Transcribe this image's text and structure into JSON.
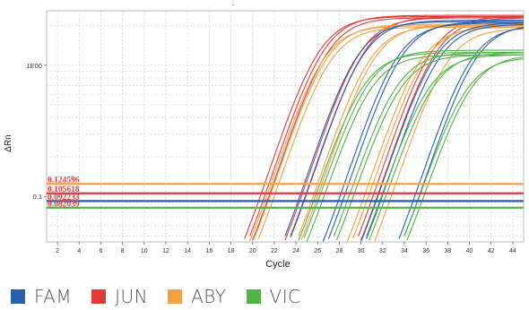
{
  "chart_data": {
    "type": "line",
    "title": "-",
    "xlabel": "Cycle",
    "ylabel": "ΔRn",
    "xlim": [
      1,
      45
    ],
    "ylim": [
      0.045,
      2.6
    ],
    "yscale": "log",
    "x_ticks": [
      "2",
      "4",
      "6",
      "8",
      "10",
      "12",
      "14",
      "16",
      "18",
      "20",
      "22",
      "24",
      "26",
      "28",
      "30",
      "32",
      "34",
      "36",
      "38",
      "40",
      "42",
      "44"
    ],
    "y_ticks": [
      {
        "value": 0.1,
        "label": "0.1"
      },
      {
        "value": 1,
        "label": "1E00"
      }
    ],
    "grid": true,
    "colors": {
      "FAM": "#2a5fb0",
      "JUN": "#e03b3b",
      "ABY": "#f5a043",
      "VIC": "#52b348"
    },
    "thresholds": [
      {
        "series": "ABY",
        "value": 0.124596,
        "label": "0.124596"
      },
      {
        "series": "JUN",
        "value": 0.105618,
        "label": "0.105618"
      },
      {
        "series": "FAM",
        "value": 0.092233,
        "label": "0.092233"
      },
      {
        "series": "VIC",
        "value": 0.082039,
        "label": "0.082039"
      }
    ],
    "series": [
      {
        "name": "JUN",
        "curves": [
          {
            "ct": 20.8,
            "plateau": 2.35
          },
          {
            "ct": 21.2,
            "plateau": 2.4
          },
          {
            "ct": 21.6,
            "plateau": 2.3
          },
          {
            "ct": 24.6,
            "plateau": 2.3
          },
          {
            "ct": 25.0,
            "plateau": 2.35
          },
          {
            "ct": 31.2,
            "plateau": 2.35
          },
          {
            "ct": 31.6,
            "plateau": 2.3
          }
        ]
      },
      {
        "name": "ABY",
        "curves": [
          {
            "ct": 21.7,
            "plateau": 2.0
          },
          {
            "ct": 22.0,
            "plateau": 2.05
          },
          {
            "ct": 22.4,
            "plateau": 1.95
          },
          {
            "ct": 26.0,
            "plateau": 2.0
          },
          {
            "ct": 26.4,
            "plateau": 2.05
          },
          {
            "ct": 30.7,
            "plateau": 1.95
          },
          {
            "ct": 31.1,
            "plateau": 2.0
          },
          {
            "ct": 33.2,
            "plateau": 1.9
          }
        ]
      },
      {
        "name": "FAM",
        "curves": [
          {
            "ct": 24.2,
            "plateau": 2.15
          },
          {
            "ct": 24.7,
            "plateau": 2.2
          },
          {
            "ct": 27.9,
            "plateau": 2.1
          },
          {
            "ct": 28.3,
            "plateau": 2.15
          },
          {
            "ct": 31.4,
            "plateau": 2.1
          },
          {
            "ct": 31.8,
            "plateau": 2.05
          },
          {
            "ct": 34.8,
            "plateau": 2.0
          },
          {
            "ct": 35.2,
            "plateau": 2.05
          }
        ]
      },
      {
        "name": "VIC",
        "curves": [
          {
            "ct": 25.4,
            "plateau": 1.25
          },
          {
            "ct": 25.8,
            "plateau": 1.3
          },
          {
            "ct": 26.2,
            "plateau": 1.2
          },
          {
            "ct": 28.5,
            "plateau": 1.25
          },
          {
            "ct": 28.9,
            "plateau": 1.2
          },
          {
            "ct": 31.5,
            "plateau": 1.2
          },
          {
            "ct": 31.9,
            "plateau": 1.25
          },
          {
            "ct": 35.0,
            "plateau": 1.15
          },
          {
            "ct": 35.4,
            "plateau": 1.2
          }
        ]
      }
    ],
    "legend": {
      "placement": "bottom-left",
      "items": [
        {
          "name": "FAM",
          "color": "#2a5fb0"
        },
        {
          "name": "JUN",
          "color": "#e03b3b"
        },
        {
          "name": "ABY",
          "color": "#f5a043"
        },
        {
          "name": "VIC",
          "color": "#52b348"
        }
      ]
    }
  }
}
